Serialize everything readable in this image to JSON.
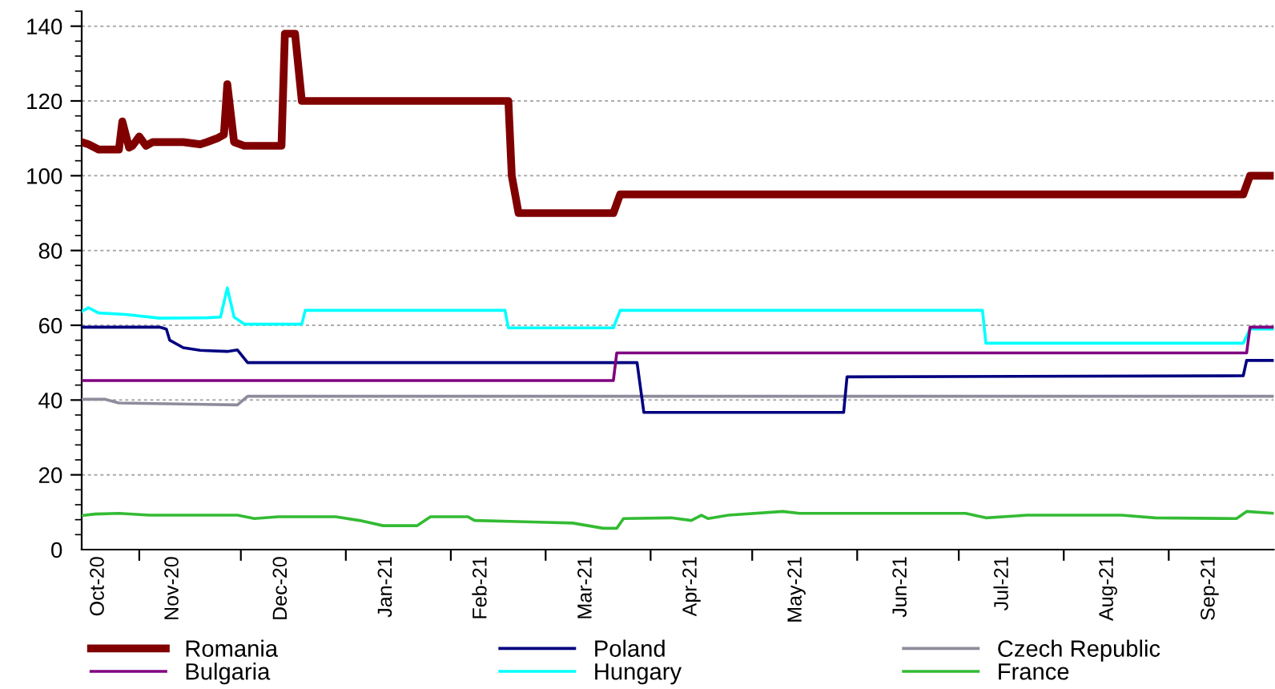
{
  "chart_data": {
    "type": "line",
    "xlim": [
      "2020-10-15",
      "2021-10-02"
    ],
    "ylim": [
      0,
      144
    ],
    "yticks": [
      0,
      20,
      40,
      60,
      80,
      100,
      120,
      140
    ],
    "xticks": [
      {
        "value": "2020-10-20",
        "label": "Oct-20"
      },
      {
        "value": "2020-11-01",
        "label": null
      },
      {
        "value": "2020-11-11",
        "label": "Nov-20"
      },
      {
        "value": "2020-12-01",
        "label": null
      },
      {
        "value": "2020-12-13",
        "label": "Dec-20"
      },
      {
        "value": "2021-01-01",
        "label": null
      },
      {
        "value": "2021-01-13",
        "label": "Jan-21"
      },
      {
        "value": "2021-02-01",
        "label": null
      },
      {
        "value": "2021-02-10",
        "label": "Feb-21"
      },
      {
        "value": "2021-03-01",
        "label": null
      },
      {
        "value": "2021-03-13",
        "label": "Mar-21"
      },
      {
        "value": "2021-04-01",
        "label": null
      },
      {
        "value": "2021-04-13",
        "label": "Apr-21"
      },
      {
        "value": "2021-05-01",
        "label": null
      },
      {
        "value": "2021-05-14",
        "label": "May-21"
      },
      {
        "value": "2021-06-01",
        "label": null
      },
      {
        "value": "2021-06-14",
        "label": "Jun-21"
      },
      {
        "value": "2021-07-01",
        "label": null
      },
      {
        "value": "2021-07-14",
        "label": "Jul-21"
      },
      {
        "value": "2021-08-01",
        "label": null
      },
      {
        "value": "2021-08-14",
        "label": "Aug-21"
      },
      {
        "value": "2021-09-01",
        "label": null
      },
      {
        "value": "2021-09-13",
        "label": "Sep-21"
      }
    ],
    "grid": "y",
    "legend": "bottom",
    "marker": "none",
    "line_style": "solid",
    "series": [
      {
        "name": "Romania",
        "color": "#800000",
        "x": [
          "2020-10-15",
          "2020-10-17",
          "2020-10-20",
          "2020-10-26",
          "2020-10-27",
          "2020-10-29",
          "2020-10-30",
          "2020-11-01",
          "2020-11-03",
          "2020-11-05",
          "2020-11-14",
          "2020-11-19",
          "2020-11-21",
          "2020-11-24",
          "2020-11-26",
          "2020-11-27",
          "2020-11-29",
          "2020-12-02",
          "2020-12-13",
          "2020-12-14",
          "2020-12-17",
          "2020-12-19",
          "2021-02-18",
          "2021-02-19",
          "2021-02-21",
          "2021-03-21",
          "2021-03-23",
          "2021-09-23",
          "2021-09-25",
          "2021-10-02"
        ],
        "values": [
          109,
          108.4,
          107,
          107,
          114.5,
          107.5,
          108,
          110.5,
          108,
          109,
          109,
          108.4,
          109,
          110,
          111,
          124.5,
          109,
          108,
          108,
          138,
          138,
          120,
          120,
          100,
          90,
          90,
          95,
          95,
          100,
          100
        ]
      },
      {
        "name": "Bulgaria",
        "color": "#800080",
        "x": [
          "2020-10-15",
          "2021-03-21",
          "2021-03-22",
          "2021-09-24",
          "2021-09-25",
          "2021-10-02"
        ],
        "values": [
          45.2,
          45.2,
          52.6,
          52.6,
          59.5,
          59.5
        ]
      },
      {
        "name": "Poland",
        "color": "#000080",
        "x": [
          "2020-10-15",
          "2020-11-07",
          "2020-11-09",
          "2020-11-10",
          "2020-11-14",
          "2020-11-19",
          "2020-11-27",
          "2020-11-30",
          "2020-12-03",
          "2021-03-28",
          "2021-03-30",
          "2021-05-28",
          "2021-05-29",
          "2021-09-23",
          "2021-09-24",
          "2021-10-02"
        ],
        "values": [
          59.5,
          59.5,
          59,
          56,
          54,
          53.3,
          53,
          53.4,
          50,
          50,
          36.7,
          36.7,
          46.2,
          46.5,
          50.6,
          50.6
        ]
      },
      {
        "name": "Hungary",
        "color": "#00ffff",
        "x": [
          "2020-10-15",
          "2020-10-17",
          "2020-10-20",
          "2020-10-28",
          "2020-11-07",
          "2020-11-21",
          "2020-11-25",
          "2020-11-27",
          "2020-11-29",
          "2020-12-02",
          "2020-12-19",
          "2020-12-20",
          "2021-02-17",
          "2021-02-18",
          "2021-03-21",
          "2021-03-23",
          "2021-07-08",
          "2021-07-09",
          "2021-09-23",
          "2021-09-25",
          "2021-10-02"
        ],
        "values": [
          63.7,
          64.7,
          63.3,
          62.9,
          61.9,
          62,
          62.2,
          70,
          62.2,
          60.3,
          60.3,
          64,
          64,
          59.3,
          59.3,
          64,
          64,
          55.2,
          55.2,
          59,
          59
        ]
      },
      {
        "name": "Czech Republic",
        "color": "#8c8c9c",
        "x": [
          "2020-10-15",
          "2020-10-22",
          "2020-10-26",
          "2020-11-30",
          "2020-12-03",
          "2021-10-02"
        ],
        "values": [
          40.2,
          40.2,
          39.2,
          38.7,
          41,
          41
        ]
      },
      {
        "name": "France",
        "color": "#33bb33",
        "x": [
          "2020-10-15",
          "2020-10-19",
          "2020-10-26",
          "2020-11-04",
          "2020-11-30",
          "2020-12-05",
          "2020-12-12",
          "2020-12-29",
          "2021-01-05",
          "2021-01-12",
          "2021-01-22",
          "2021-01-26",
          "2021-02-06",
          "2021-02-08",
          "2021-02-25",
          "2021-03-09",
          "2021-03-18",
          "2021-03-22",
          "2021-03-24",
          "2021-04-07",
          "2021-04-13",
          "2021-04-16",
          "2021-04-18",
          "2021-04-24",
          "2021-05-10",
          "2021-05-15",
          "2021-07-03",
          "2021-07-09",
          "2021-07-21",
          "2021-08-18",
          "2021-08-28",
          "2021-09-21",
          "2021-09-24",
          "2021-10-02"
        ],
        "values": [
          9.1,
          9.5,
          9.7,
          9.2,
          9.2,
          8.3,
          8.8,
          8.8,
          7.8,
          6.4,
          6.4,
          8.8,
          8.8,
          7.8,
          7.4,
          7.1,
          5.7,
          5.7,
          8.3,
          8.5,
          7.8,
          9.2,
          8.3,
          9.2,
          10.2,
          9.7,
          9.7,
          8.5,
          9.2,
          9.2,
          8.5,
          8.3,
          10.2,
          9.7
        ]
      }
    ]
  }
}
